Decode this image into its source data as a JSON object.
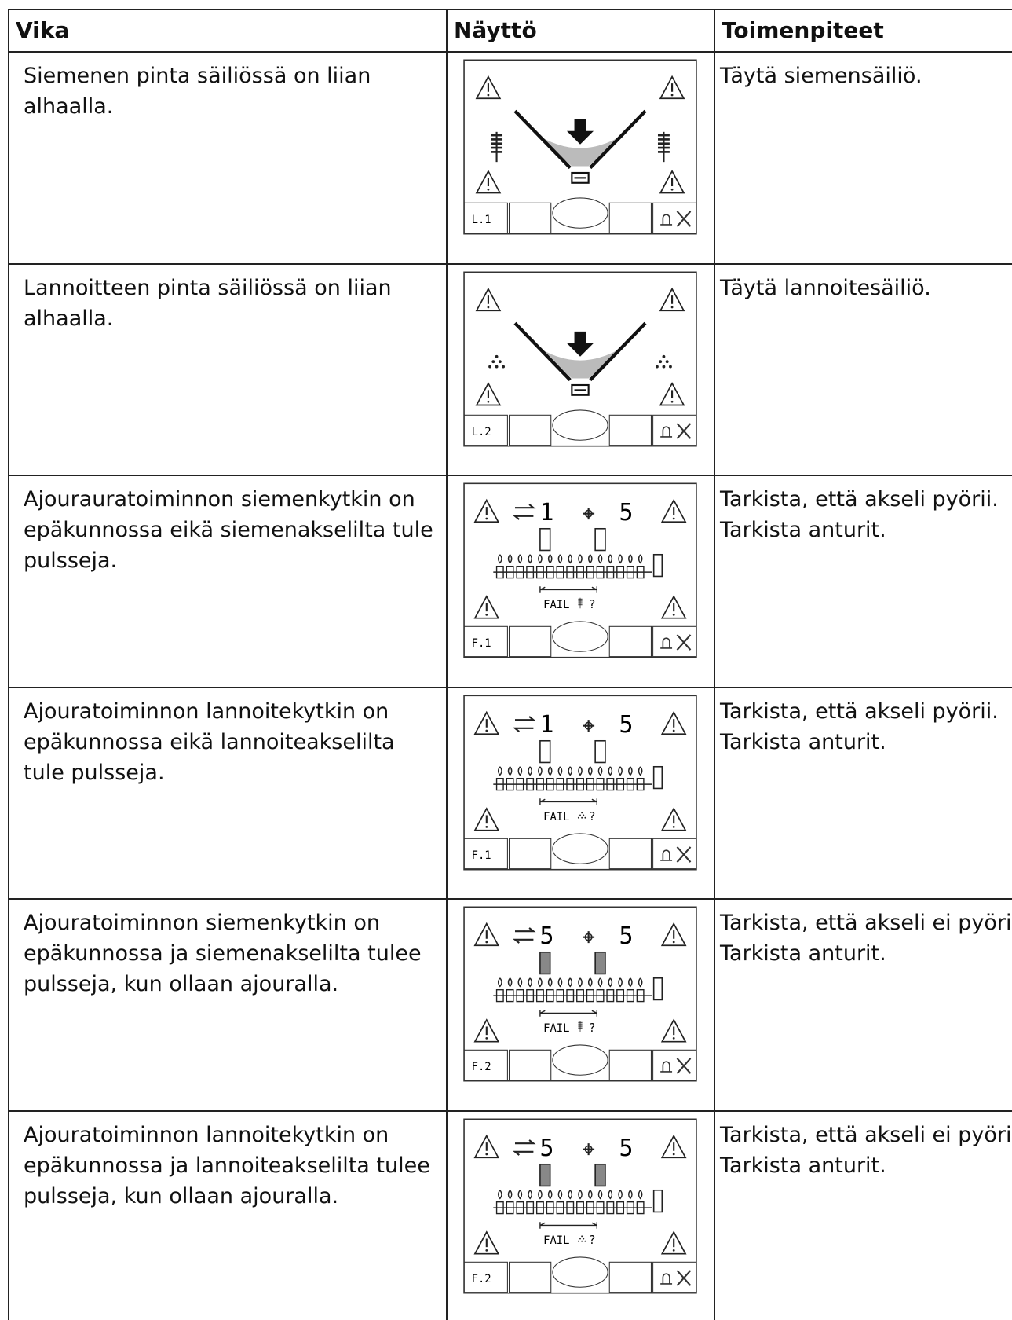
{
  "table": {
    "header": [
      "Vika",
      "Näyttö",
      "Toimenpiteet"
    ],
    "rows": [
      {
        "fault": [
          "Siemenen pinta säiliössä on liian",
          "alhaalla."
        ],
        "display": {
          "code": "L.1"
        },
        "action": [
          "Täytä siemensäiliö."
        ]
      },
      {
        "fault": [
          "Lannoitteen pinta säiliössä on liian",
          "alhaalla."
        ],
        "display": {
          "code": "L.2"
        },
        "action": [
          "Täytä lannoitesäiliö."
        ]
      },
      {
        "fault": [
          "Ajourauratoiminnon siemenkytkin on",
          "epäkunnossa eikä siemenakselilta tule",
          "pulsseja."
        ],
        "display": {
          "code": "F.1",
          "left": 1,
          "right": 5,
          "fail": "FAIL",
          "question": "?"
        },
        "action": [
          "Tarkista, että akseli pyörii.",
          "Tarkista anturit."
        ]
      },
      {
        "fault": [
          "Ajouratoiminnon lannoitekytkin on",
          "epäkunnossa eikä lannoiteakselilta",
          "tule pulsseja."
        ],
        "display": {
          "code": "F.1",
          "left": 1,
          "right": 5,
          "fail": "FAIL",
          "question": "?"
        },
        "action": [
          "Tarkista, että akseli pyörii.",
          "Tarkista anturit."
        ]
      },
      {
        "fault": [
          "Ajouratoiminnon siemenkytkin on",
          "epäkunnossa ja siemenakselilta tulee",
          "pulsseja, kun ollaan ajouralla."
        ],
        "display": {
          "code": "F.2",
          "left": 5,
          "right": 5,
          "fail": "FAIL",
          "question": "?"
        },
        "action": [
          "Tarkista, että akseli ei pyöri.",
          "Tarkista anturit."
        ]
      },
      {
        "fault": [
          "Ajouratoiminnon lannoitekytkin on",
          "epäkunnossa ja lannoiteakselilta tulee",
          "pulsseja, kun ollaan ajouralla."
        ],
        "display": {
          "code": "F.2",
          "left": 5,
          "right": 5,
          "fail": "FAIL",
          "question": "?"
        },
        "action": [
          "Tarkista, että akseli ei pyöri.",
          "Tarkista anturit."
        ]
      }
    ]
  }
}
